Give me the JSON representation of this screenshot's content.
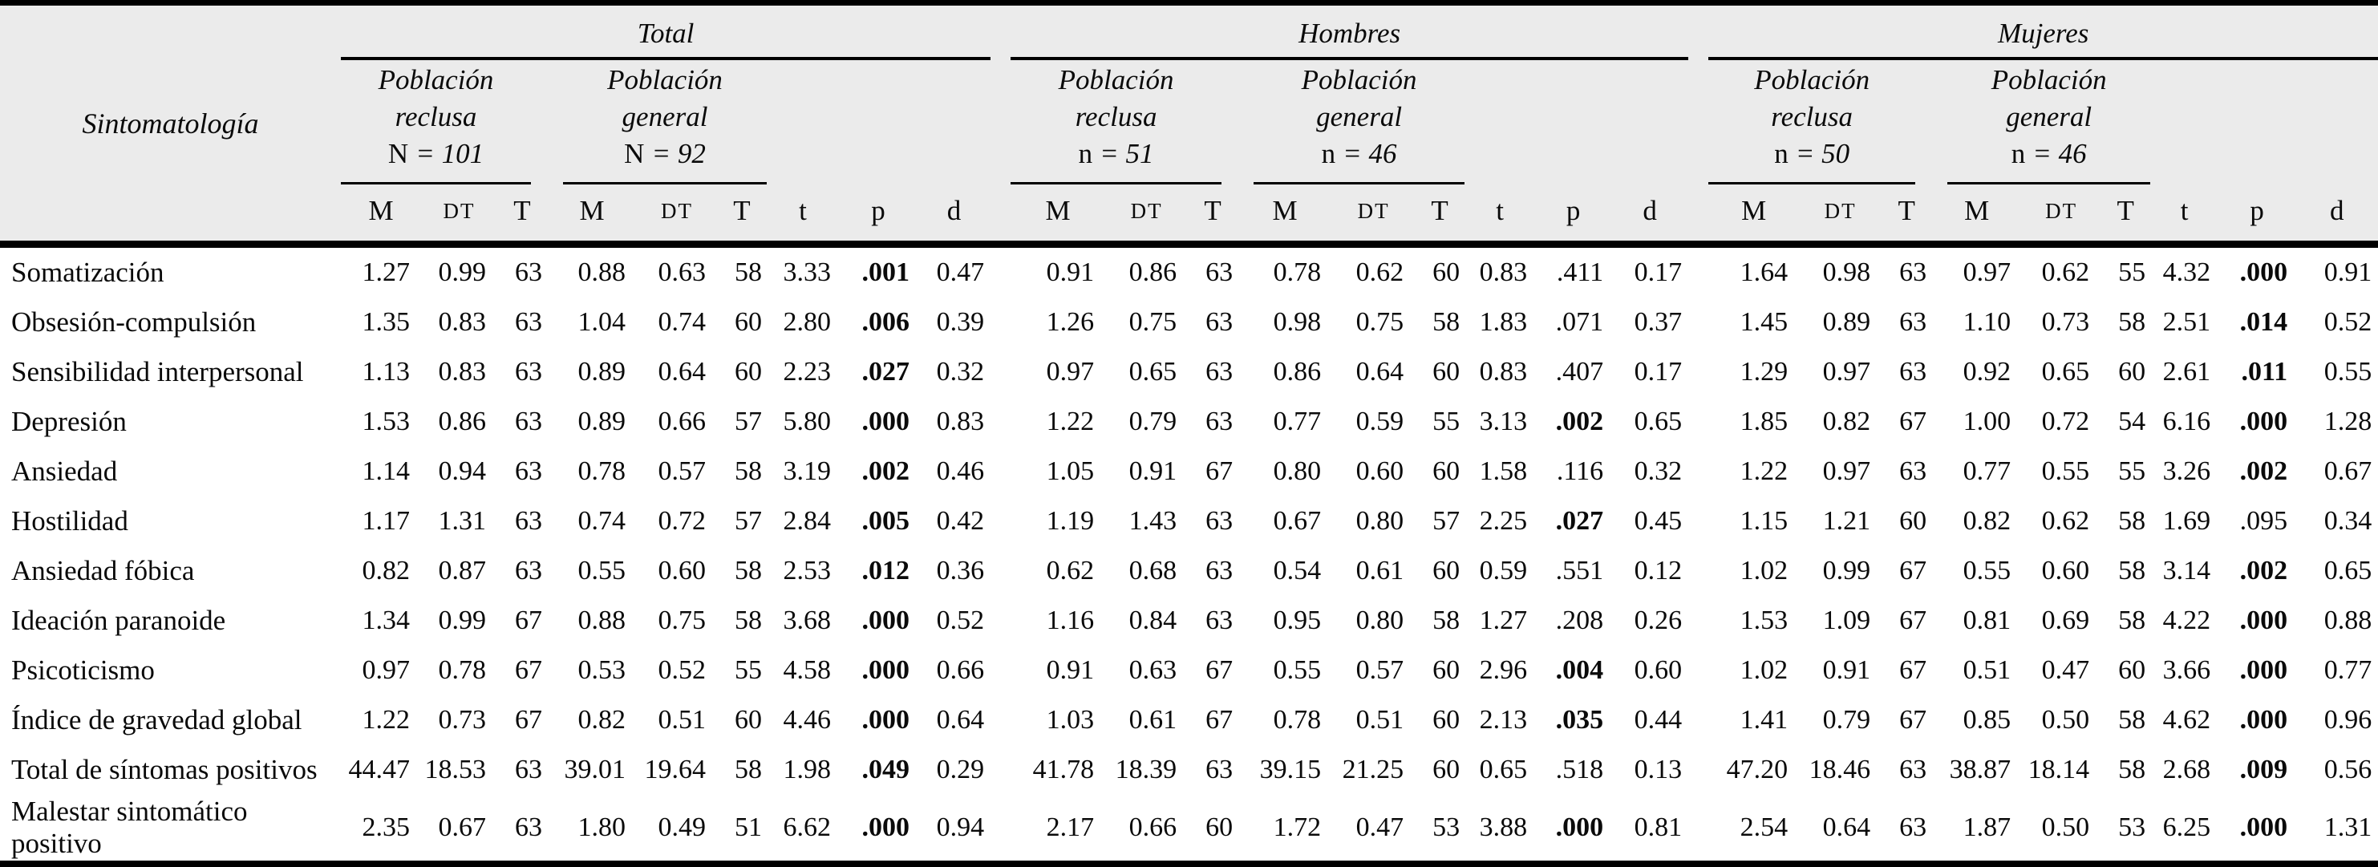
{
  "header": {
    "label": "Sintomatología",
    "cols": [
      "M",
      "DT",
      "T",
      "M",
      "DT",
      "T",
      "t",
      "p",
      "d"
    ],
    "groups": [
      {
        "title": "Total",
        "pop1_l1": "Población",
        "pop1_l2": "reclusa",
        "n1_label": "N",
        "n1_rest": "= 101",
        "pop2_l1": "Población",
        "pop2_l2": "general",
        "n2_label": "N",
        "n2_rest": "= 92"
      },
      {
        "title": "Hombres",
        "pop1_l1": "Población",
        "pop1_l2": "reclusa",
        "n1_label": "n",
        "n1_rest": "= 51",
        "pop2_l1": "Población",
        "pop2_l2": "general",
        "n2_label": "n",
        "n2_rest": "= 46"
      },
      {
        "title": "Mujeres",
        "pop1_l1": "Población",
        "pop1_l2": "reclusa",
        "n1_label": "n",
        "n1_rest": "= 50",
        "pop2_l1": "Población",
        "pop2_l2": "general",
        "n2_label": "n",
        "n2_rest": "= 46"
      }
    ]
  },
  "rows": [
    {
      "label": "Somatización",
      "total": {
        "cells": [
          "1.27",
          "0.99",
          "63",
          "0.88",
          "0.63",
          "58",
          "3.33",
          ".001",
          "0.47"
        ],
        "p_bold": true
      },
      "hombres": {
        "cells": [
          "0.91",
          "0.86",
          "63",
          "0.78",
          "0.62",
          "60",
          "0.83",
          ".411",
          "0.17"
        ],
        "p_bold": false
      },
      "mujeres": {
        "cells": [
          "1.64",
          "0.98",
          "63",
          "0.97",
          "0.62",
          "55",
          "4.32",
          ".000",
          "0.91"
        ],
        "p_bold": true
      }
    },
    {
      "label": "Obsesión-compulsión",
      "total": {
        "cells": [
          "1.35",
          "0.83",
          "63",
          "1.04",
          "0.74",
          "60",
          "2.80",
          ".006",
          "0.39"
        ],
        "p_bold": true
      },
      "hombres": {
        "cells": [
          "1.26",
          "0.75",
          "63",
          "0.98",
          "0.75",
          "58",
          "1.83",
          ".071",
          "0.37"
        ],
        "p_bold": false
      },
      "mujeres": {
        "cells": [
          "1.45",
          "0.89",
          "63",
          "1.10",
          "0.73",
          "58",
          "2.51",
          ".014",
          "0.52"
        ],
        "p_bold": true
      }
    },
    {
      "label": "Sensibilidad interpersonal",
      "total": {
        "cells": [
          "1.13",
          "0.83",
          "63",
          "0.89",
          "0.64",
          "60",
          "2.23",
          ".027",
          "0.32"
        ],
        "p_bold": true
      },
      "hombres": {
        "cells": [
          "0.97",
          "0.65",
          "63",
          "0.86",
          "0.64",
          "60",
          "0.83",
          ".407",
          "0.17"
        ],
        "p_bold": false
      },
      "mujeres": {
        "cells": [
          "1.29",
          "0.97",
          "63",
          "0.92",
          "0.65",
          "60",
          "2.61",
          ".011",
          "0.55"
        ],
        "p_bold": true
      }
    },
    {
      "label": "Depresión",
      "total": {
        "cells": [
          "1.53",
          "0.86",
          "63",
          "0.89",
          "0.66",
          "57",
          "5.80",
          ".000",
          "0.83"
        ],
        "p_bold": true
      },
      "hombres": {
        "cells": [
          "1.22",
          "0.79",
          "63",
          "0.77",
          "0.59",
          "55",
          "3.13",
          ".002",
          "0.65"
        ],
        "p_bold": true
      },
      "mujeres": {
        "cells": [
          "1.85",
          "0.82",
          "67",
          "1.00",
          "0.72",
          "54",
          "6.16",
          ".000",
          "1.28"
        ],
        "p_bold": true
      }
    },
    {
      "label": "Ansiedad",
      "total": {
        "cells": [
          "1.14",
          "0.94",
          "63",
          "0.78",
          "0.57",
          "58",
          "3.19",
          ".002",
          "0.46"
        ],
        "p_bold": true
      },
      "hombres": {
        "cells": [
          "1.05",
          "0.91",
          "67",
          "0.80",
          "0.60",
          "60",
          "1.58",
          ".116",
          "0.32"
        ],
        "p_bold": false
      },
      "mujeres": {
        "cells": [
          "1.22",
          "0.97",
          "63",
          "0.77",
          "0.55",
          "55",
          "3.26",
          ".002",
          "0.67"
        ],
        "p_bold": true
      }
    },
    {
      "label": "Hostilidad",
      "total": {
        "cells": [
          "1.17",
          "1.31",
          "63",
          "0.74",
          "0.72",
          "57",
          "2.84",
          ".005",
          "0.42"
        ],
        "p_bold": true
      },
      "hombres": {
        "cells": [
          "1.19",
          "1.43",
          "63",
          "0.67",
          "0.80",
          "57",
          "2.25",
          ".027",
          "0.45"
        ],
        "p_bold": true
      },
      "mujeres": {
        "cells": [
          "1.15",
          "1.21",
          "60",
          "0.82",
          "0.62",
          "58",
          "1.69",
          ".095",
          "0.34"
        ],
        "p_bold": false
      }
    },
    {
      "label": "Ansiedad fóbica",
      "total": {
        "cells": [
          "0.82",
          "0.87",
          "63",
          "0.55",
          "0.60",
          "58",
          "2.53",
          ".012",
          "0.36"
        ],
        "p_bold": true
      },
      "hombres": {
        "cells": [
          "0.62",
          "0.68",
          "63",
          "0.54",
          "0.61",
          "60",
          "0.59",
          ".551",
          "0.12"
        ],
        "p_bold": false
      },
      "mujeres": {
        "cells": [
          "1.02",
          "0.99",
          "67",
          "0.55",
          "0.60",
          "58",
          "3.14",
          ".002",
          "0.65"
        ],
        "p_bold": true
      }
    },
    {
      "label": "Ideación paranoide",
      "total": {
        "cells": [
          "1.34",
          "0.99",
          "67",
          "0.88",
          "0.75",
          "58",
          "3.68",
          ".000",
          "0.52"
        ],
        "p_bold": true
      },
      "hombres": {
        "cells": [
          "1.16",
          "0.84",
          "63",
          "0.95",
          "0.80",
          "58",
          "1.27",
          ".208",
          "0.26"
        ],
        "p_bold": false
      },
      "mujeres": {
        "cells": [
          "1.53",
          "1.09",
          "67",
          "0.81",
          "0.69",
          "58",
          "4.22",
          ".000",
          "0.88"
        ],
        "p_bold": true
      }
    },
    {
      "label": "Psicoticismo",
      "total": {
        "cells": [
          "0.97",
          "0.78",
          "67",
          "0.53",
          "0.52",
          "55",
          "4.58",
          ".000",
          "0.66"
        ],
        "p_bold": true
      },
      "hombres": {
        "cells": [
          "0.91",
          "0.63",
          "67",
          "0.55",
          "0.57",
          "60",
          "2.96",
          ".004",
          "0.60"
        ],
        "p_bold": true
      },
      "mujeres": {
        "cells": [
          "1.02",
          "0.91",
          "67",
          "0.51",
          "0.47",
          "60",
          "3.66",
          ".000",
          "0.77"
        ],
        "p_bold": true
      }
    },
    {
      "label": "Índice de gravedad global",
      "total": {
        "cells": [
          "1.22",
          "0.73",
          "67",
          "0.82",
          "0.51",
          "60",
          "4.46",
          ".000",
          "0.64"
        ],
        "p_bold": true
      },
      "hombres": {
        "cells": [
          "1.03",
          "0.61",
          "67",
          "0.78",
          "0.51",
          "60",
          "2.13",
          ".035",
          "0.44"
        ],
        "p_bold": true
      },
      "mujeres": {
        "cells": [
          "1.41",
          "0.79",
          "67",
          "0.85",
          "0.50",
          "58",
          "4.62",
          ".000",
          "0.96"
        ],
        "p_bold": true
      }
    },
    {
      "label": "Total de síntomas positivos",
      "total": {
        "cells": [
          "44.47",
          "18.53",
          "63",
          "39.01",
          "19.64",
          "58",
          "1.98",
          ".049",
          "0.29"
        ],
        "p_bold": true
      },
      "hombres": {
        "cells": [
          "41.78",
          "18.39",
          "63",
          "39.15",
          "21.25",
          "60",
          "0.65",
          ".518",
          "0.13"
        ],
        "p_bold": false
      },
      "mujeres": {
        "cells": [
          "47.20",
          "18.46",
          "63",
          "38.87",
          "18.14",
          "58",
          "2.68",
          ".009",
          "0.56"
        ],
        "p_bold": true
      }
    },
    {
      "label": "Malestar sintomático positivo",
      "total": {
        "cells": [
          "2.35",
          "0.67",
          "63",
          "1.80",
          "0.49",
          "51",
          "6.62",
          ".000",
          "0.94"
        ],
        "p_bold": true
      },
      "hombres": {
        "cells": [
          "2.17",
          "0.66",
          "60",
          "1.72",
          "0.47",
          "53",
          "3.88",
          ".000",
          "0.81"
        ],
        "p_bold": true
      },
      "mujeres": {
        "cells": [
          "2.54",
          "0.64",
          "63",
          "1.87",
          "0.50",
          "53",
          "6.25",
          ".000",
          "1.31"
        ],
        "p_bold": true
      }
    }
  ]
}
